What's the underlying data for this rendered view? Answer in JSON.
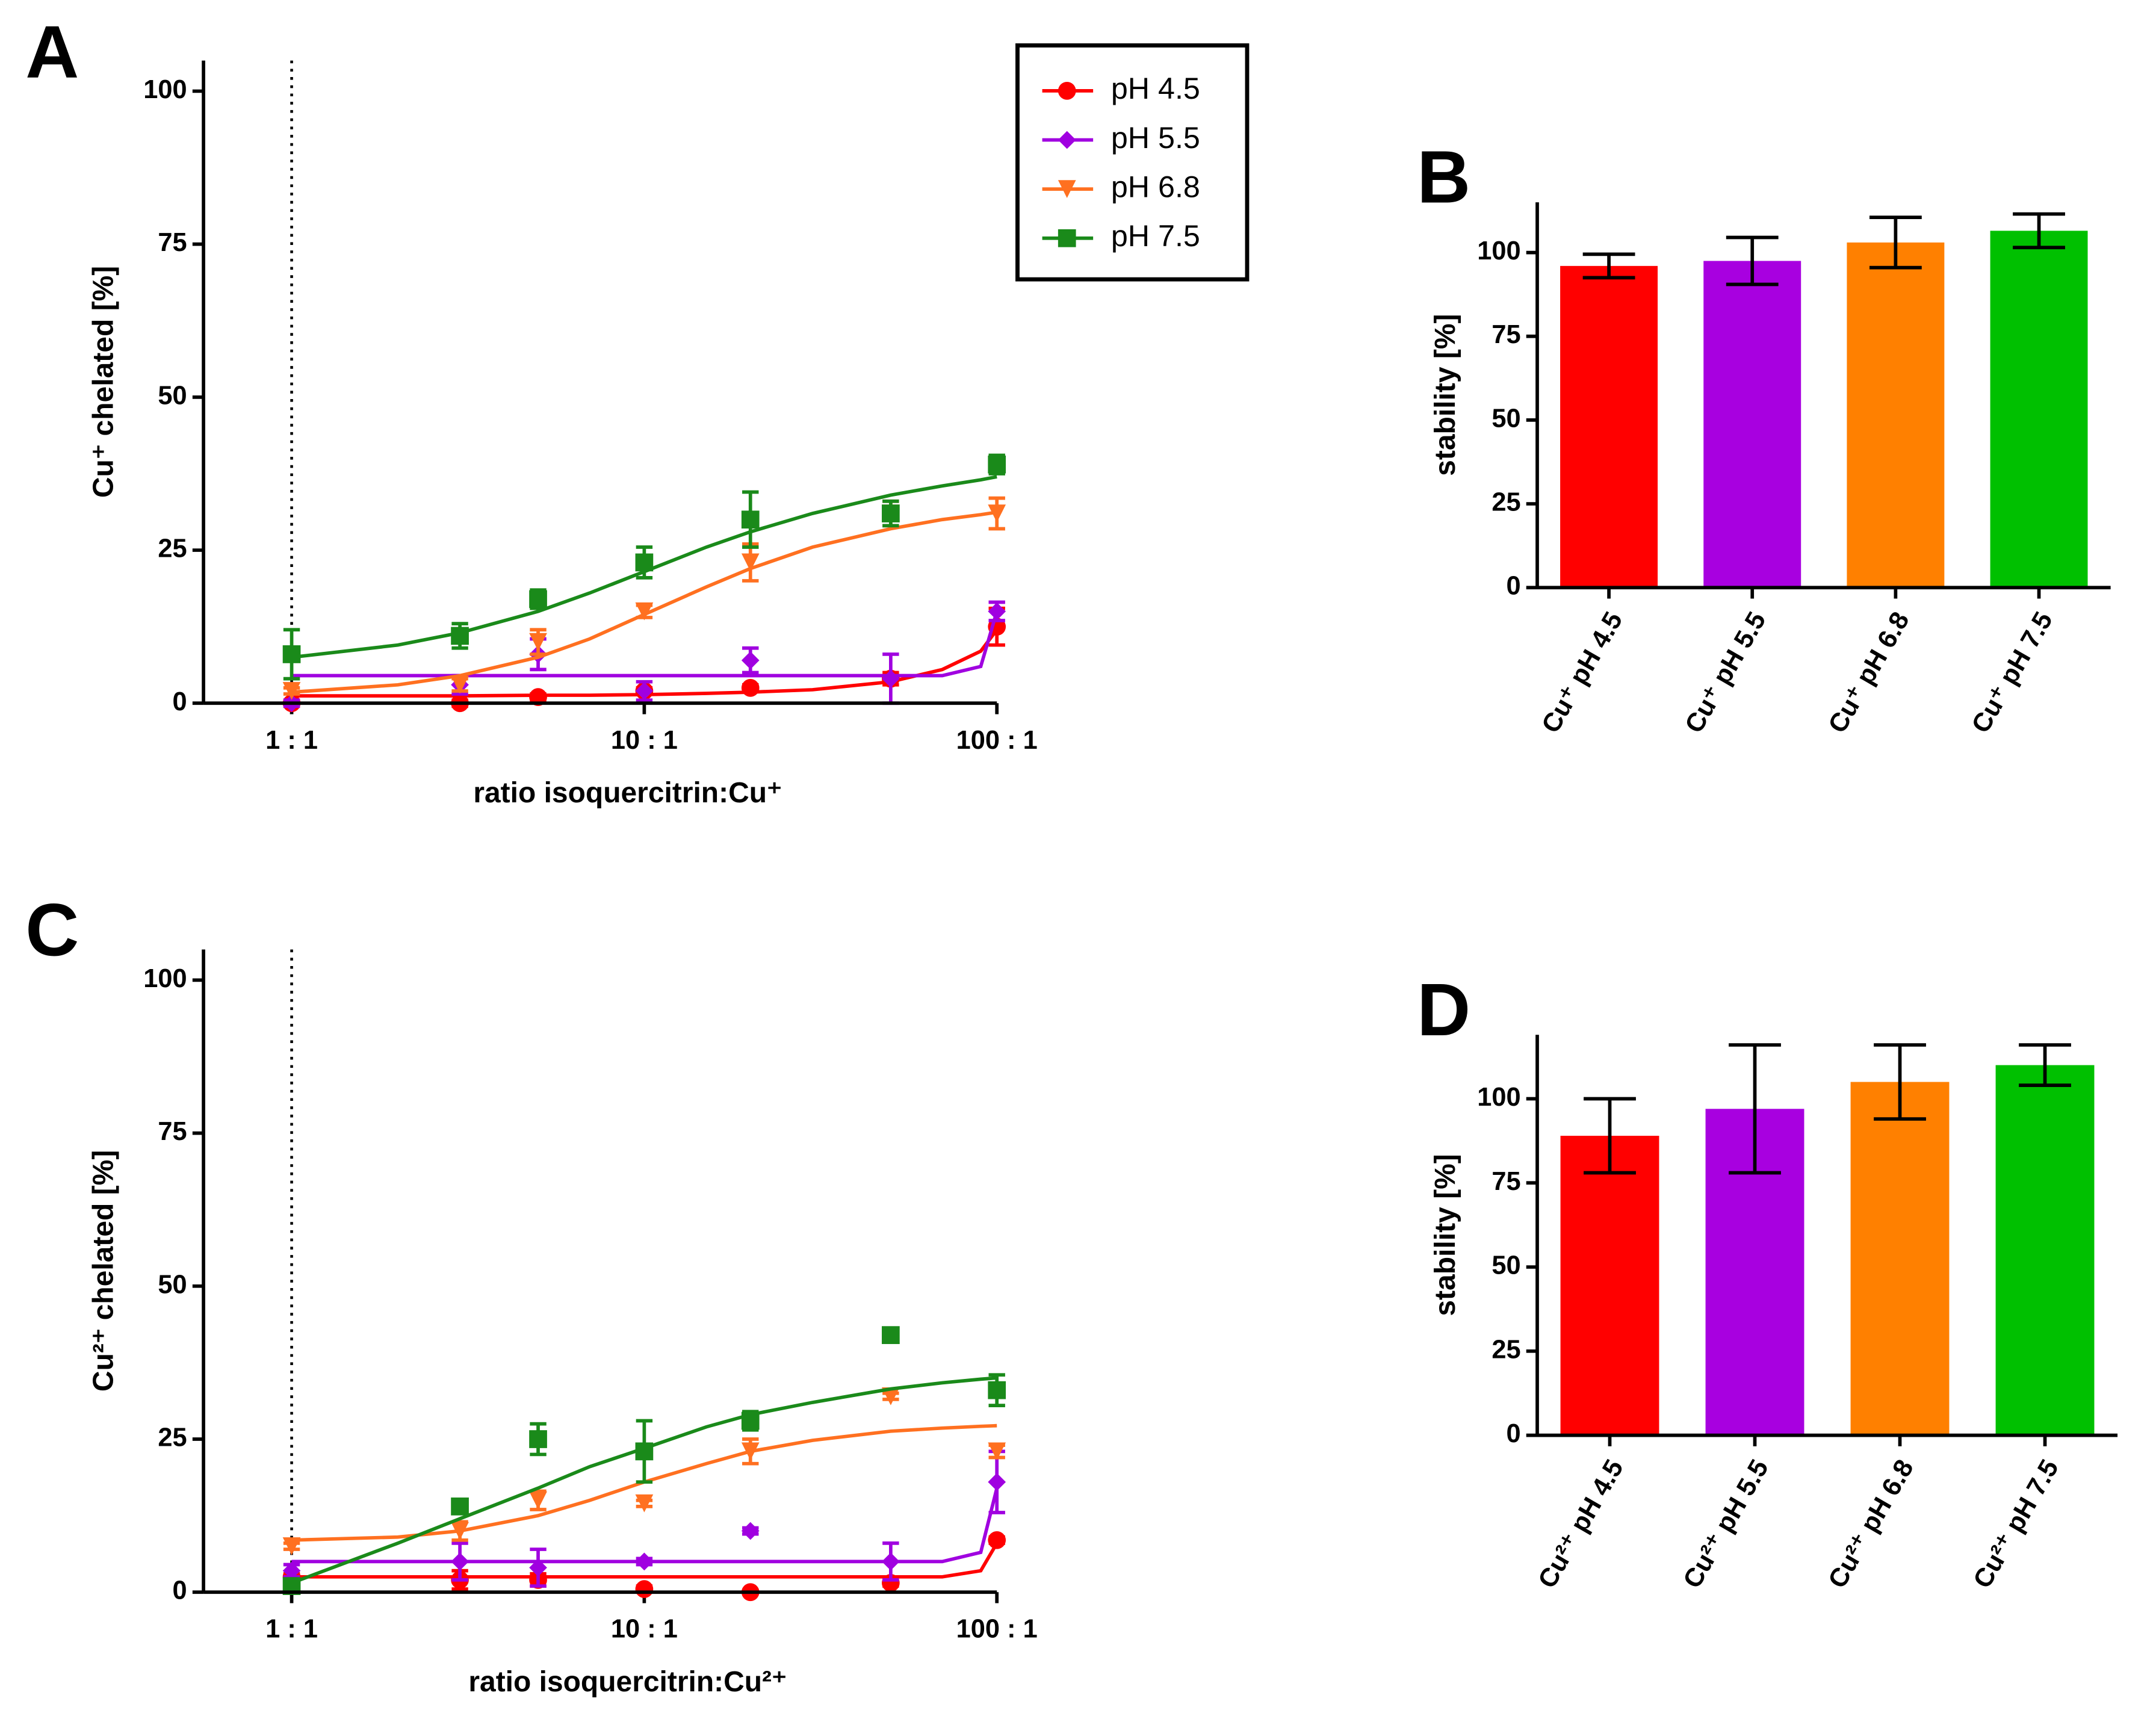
{
  "chart_data": [
    {
      "type": "scatter",
      "panel": "A",
      "xscale": "log",
      "xlim": [
        0.5623,
        100
      ],
      "ylim": [
        0,
        105
      ],
      "xticks": [
        {
          "value": 1,
          "label": "1 : 1"
        },
        {
          "value": 10,
          "label": "10 : 1"
        },
        {
          "value": 100,
          "label": "100 : 1"
        }
      ],
      "yticks": [
        0,
        25,
        50,
        75,
        100
      ],
      "vline": 1,
      "xlabel": "ratio isoquercitrin:Cu⁺",
      "ylabel": "Cu⁺ chelated [%]",
      "legend": "upper right",
      "x": [
        1,
        3,
        5,
        10,
        20,
        50,
        100
      ],
      "fit_x": [
        1,
        2,
        3,
        5,
        7,
        10,
        15,
        20,
        30,
        50,
        70,
        90,
        100
      ],
      "series": [
        {
          "name": "pH 4.5",
          "color": "#ff0000",
          "marker": "circle",
          "values": [
            0,
            0,
            1,
            2,
            2.5,
            4,
            12.5
          ],
          "errors": [
            0.5,
            0.5,
            0.5,
            0.5,
            0.5,
            1,
            3
          ],
          "fit": [
            1.2,
            1.2,
            1.2,
            1.3,
            1.3,
            1.4,
            1.6,
            1.8,
            2.2,
            3.5,
            5.5,
            8.5,
            12
          ]
        },
        {
          "name": "pH 5.5",
          "color": "#a000e0",
          "marker": "diamond",
          "values": [
            0,
            3,
            8,
            2,
            7,
            4,
            15
          ],
          "errors": [
            0.5,
            1.5,
            2.5,
            1.5,
            2,
            4,
            1.5
          ],
          "fit": [
            4.5,
            4.5,
            4.5,
            4.5,
            4.5,
            4.5,
            4.5,
            4.5,
            4.5,
            4.5,
            4.5,
            6,
            15
          ]
        },
        {
          "name": "pH 6.8",
          "color": "#ff7020",
          "marker": "triangle",
          "values": [
            2,
            3,
            10,
            15,
            23,
            31,
            31
          ],
          "errors": [
            0.5,
            1,
            2,
            1,
            3,
            2,
            2.5
          ],
          "fit": [
            1.8,
            3,
            4.5,
            7.5,
            10.5,
            14.5,
            19,
            22,
            25.5,
            28.5,
            30,
            30.8,
            31.2
          ]
        },
        {
          "name": "pH 7.5",
          "color": "#1a8a1a",
          "marker": "square",
          "values": [
            8,
            11,
            17,
            23,
            30,
            31,
            39
          ],
          "errors": [
            4,
            2,
            1.5,
            2.5,
            4.5,
            2,
            1.5
          ],
          "fit": [
            7.5,
            9.5,
            11.5,
            15,
            18,
            21.5,
            25.5,
            28,
            31,
            34,
            35.5,
            36.5,
            37
          ]
        }
      ]
    },
    {
      "type": "bar",
      "panel": "B",
      "ylim": [
        0,
        115
      ],
      "yticks": [
        0,
        25,
        50,
        75,
        100
      ],
      "ylabel": "stability [%]",
      "categories": [
        "Cu⁺ pH 4.5",
        "Cu⁺ pH 5.5",
        "Cu⁺ pH 6.8",
        "Cu⁺ pH 7.5"
      ],
      "values": [
        96,
        97.5,
        103,
        106.5
      ],
      "errors": [
        3.5,
        7,
        7.5,
        5
      ],
      "colors": [
        "#ff0000",
        "#a800e0",
        "#ff8000",
        "#00c000"
      ]
    },
    {
      "type": "scatter",
      "panel": "C",
      "xscale": "log",
      "xlim": [
        0.5623,
        100
      ],
      "ylim": [
        0,
        105
      ],
      "xticks": [
        {
          "value": 1,
          "label": "1 : 1"
        },
        {
          "value": 10,
          "label": "10 : 1"
        },
        {
          "value": 100,
          "label": "100 : 1"
        }
      ],
      "yticks": [
        0,
        25,
        50,
        75,
        100
      ],
      "vline": 1,
      "xlabel": "ratio isoquercitrin:Cu²⁺",
      "ylabel": "Cu²⁺ chelated [%]",
      "x": [
        1,
        3,
        5,
        10,
        20,
        50,
        100
      ],
      "fit_x": [
        1,
        2,
        3,
        5,
        7,
        10,
        15,
        20,
        30,
        50,
        70,
        90,
        100
      ],
      "series": [
        {
          "name": "pH 4.5",
          "color": "#ff0000",
          "marker": "circle",
          "values": [
            2.5,
            2,
            2,
            0.5,
            0,
            1.5,
            8.5
          ],
          "errors": [
            0.5,
            1.5,
            1,
            0.5,
            0.3,
            0.5,
            0.5
          ],
          "fit": [
            2.5,
            2.5,
            2.5,
            2.5,
            2.5,
            2.5,
            2.5,
            2.5,
            2.5,
            2.5,
            2.5,
            3.5,
            8
          ]
        },
        {
          "name": "pH 5.5",
          "color": "#a000e0",
          "marker": "diamond",
          "values": [
            3.5,
            5,
            4,
            5,
            10,
            5,
            18
          ],
          "errors": [
            1,
            3,
            3,
            0.5,
            0.5,
            3,
            5
          ],
          "fit": [
            5,
            5,
            5,
            5,
            5,
            5,
            5,
            5,
            5,
            5,
            5,
            6.5,
            17
          ]
        },
        {
          "name": "pH 6.8",
          "color": "#ff7020",
          "marker": "triangle",
          "values": [
            7.5,
            10,
            15,
            14.5,
            23,
            32,
            23
          ],
          "errors": [
            0.5,
            1.5,
            1.5,
            0.5,
            2,
            0.5,
            1
          ],
          "fit": [
            8.5,
            9,
            10,
            12.5,
            15,
            18,
            21,
            23,
            24.8,
            26.3,
            26.8,
            27.1,
            27.2
          ]
        },
        {
          "name": "pH 7.5",
          "color": "#1a8a1a",
          "marker": "square",
          "values": [
            1,
            14,
            25,
            23,
            28,
            42,
            33
          ],
          "errors": [
            0.5,
            1,
            2.5,
            5,
            1.5,
            0.5,
            2.5
          ],
          "fit": [
            1.5,
            8,
            12,
            17,
            20.5,
            23.5,
            27,
            29,
            31,
            33.2,
            34.2,
            34.8,
            35
          ]
        }
      ]
    },
    {
      "type": "bar",
      "panel": "D",
      "ylim": [
        0,
        119
      ],
      "yticks": [
        0,
        25,
        50,
        75,
        100
      ],
      "ylabel": "stability [%]",
      "categories": [
        "Cu²⁺ pH 4.5",
        "Cu²⁺ pH 5.5",
        "Cu²⁺ pH 6.8",
        "Cu²⁺ pH 7.5"
      ],
      "values": [
        89,
        97,
        105,
        110
      ],
      "errors": [
        11,
        19,
        11,
        6
      ],
      "colors": [
        "#ff0000",
        "#a800e0",
        "#ff8000",
        "#00c000"
      ]
    }
  ]
}
